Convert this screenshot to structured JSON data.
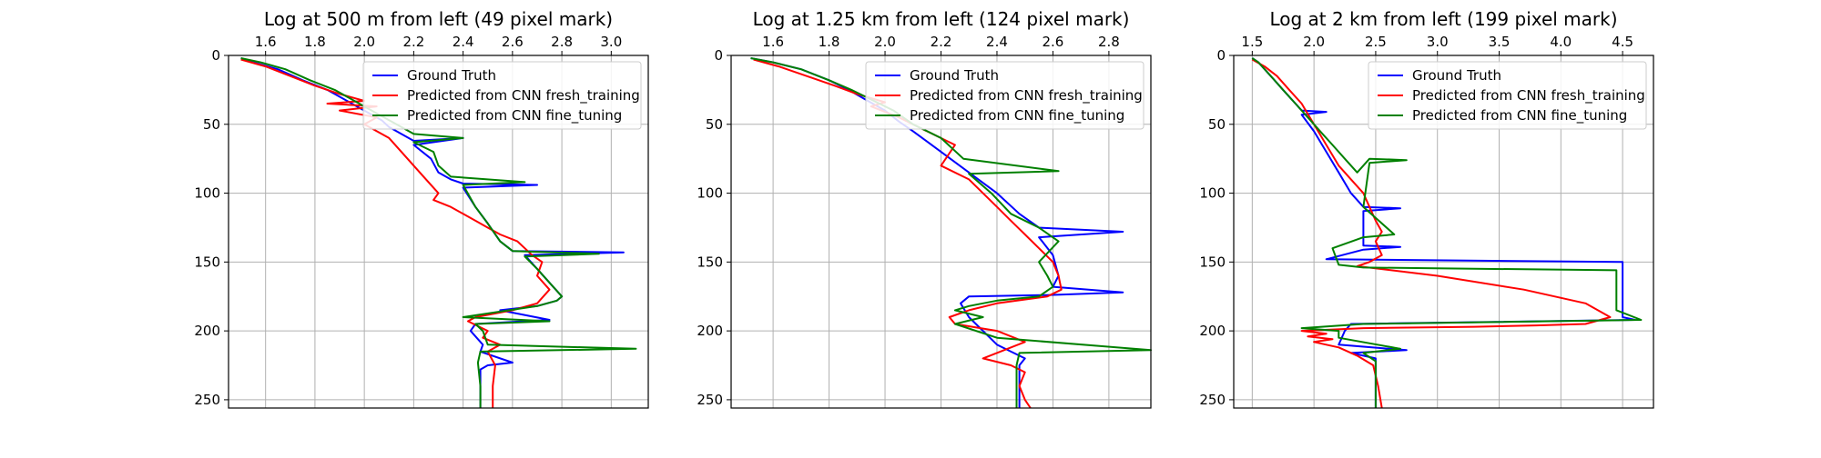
{
  "chart_data": [
    {
      "type": "line",
      "title": "Log at 500 m from left (49 pixel mark)",
      "xlabel": "",
      "ylabel": "",
      "xlim": [
        1.45,
        3.15
      ],
      "ylim": [
        256,
        0
      ],
      "y_inverted": true,
      "xticks": [
        1.6,
        1.8,
        2.0,
        2.2,
        2.4,
        2.6,
        2.8,
        3.0
      ],
      "xtick_labels": [
        "1.6",
        "1.8",
        "2.0",
        "2.2",
        "2.4",
        "2.6",
        "2.8",
        "3.0"
      ],
      "yticks": [
        0,
        50,
        100,
        150,
        200,
        250
      ],
      "ytick_labels": [
        "0",
        "50",
        "100",
        "150",
        "200",
        "250"
      ],
      "x_axis_position": "top",
      "grid": true,
      "legend_position": "top-right",
      "series": [
        {
          "name": "Ground Truth",
          "color": "#0000ff",
          "x": [
            1.5,
            1.55,
            1.65,
            1.75,
            1.85,
            1.92,
            1.97,
            2.02,
            2.07,
            2.1,
            2.15,
            2.2,
            2.4,
            2.2,
            2.27,
            2.3,
            2.35,
            2.4,
            2.7,
            2.4,
            2.45,
            2.5,
            2.55,
            2.6,
            3.05,
            2.65,
            2.7,
            2.75,
            2.8,
            2.78,
            2.7,
            2.55,
            2.75,
            2.45,
            2.43,
            2.48,
            2.47,
            2.6,
            2.5,
            2.47,
            2.47,
            2.47
          ],
          "y": [
            2,
            5,
            10,
            18,
            25,
            32,
            37,
            42,
            47,
            52,
            57,
            62,
            60,
            65,
            75,
            85,
            90,
            93,
            94,
            96,
            110,
            122,
            135,
            142,
            143,
            145,
            155,
            165,
            175,
            178,
            182,
            185,
            192,
            195,
            200,
            210,
            215,
            223,
            225,
            228,
            240,
            256
          ]
        },
        {
          "name": "Predicted from CNN fresh_training",
          "color": "#ff0000",
          "x": [
            1.5,
            1.6,
            1.7,
            1.8,
            1.9,
            2.0,
            1.85,
            2.05,
            1.9,
            2.05,
            2.0,
            2.1,
            2.15,
            2.2,
            2.25,
            2.3,
            2.28,
            2.35,
            2.4,
            2.45,
            2.5,
            2.55,
            2.62,
            2.65,
            2.68,
            2.72,
            2.7,
            2.75,
            2.7,
            2.6,
            2.45,
            2.42,
            2.5,
            2.48,
            2.55,
            2.5,
            2.53,
            2.52,
            2.52
          ],
          "y": [
            3,
            8,
            15,
            22,
            28,
            33,
            35,
            37,
            40,
            45,
            50,
            60,
            70,
            80,
            90,
            100,
            105,
            110,
            115,
            120,
            125,
            130,
            135,
            140,
            145,
            150,
            160,
            170,
            180,
            185,
            190,
            193,
            200,
            205,
            210,
            215,
            225,
            240,
            256
          ]
        },
        {
          "name": "Predicted from CNN fine_tuning",
          "color": "#008000",
          "x": [
            1.5,
            1.58,
            1.68,
            1.78,
            1.88,
            1.95,
            2.0,
            2.05,
            2.1,
            2.15,
            2.2,
            2.4,
            2.2,
            2.28,
            2.3,
            2.35,
            2.65,
            2.4,
            2.45,
            2.5,
            2.55,
            2.6,
            2.95,
            2.65,
            2.7,
            2.75,
            2.8,
            2.78,
            2.7,
            2.55,
            2.4,
            2.75,
            2.45,
            2.48,
            2.5,
            3.1,
            2.47,
            2.46,
            2.47,
            2.47
          ],
          "y": [
            2,
            5,
            10,
            18,
            25,
            32,
            37,
            42,
            47,
            52,
            57,
            60,
            63,
            70,
            80,
            88,
            92,
            94,
            110,
            122,
            135,
            142,
            144,
            146,
            155,
            165,
            175,
            178,
            182,
            186,
            190,
            193,
            195,
            200,
            210,
            213,
            215,
            223,
            240,
            256
          ]
        }
      ]
    },
    {
      "type": "line",
      "title": "Log at 1.25 km from left (124 pixel mark)",
      "xlabel": "",
      "ylabel": "",
      "xlim": [
        1.45,
        2.95
      ],
      "ylim": [
        256,
        0
      ],
      "y_inverted": true,
      "xticks": [
        1.6,
        1.8,
        2.0,
        2.2,
        2.4,
        2.6,
        2.8
      ],
      "xtick_labels": [
        "1.6",
        "1.8",
        "2.0",
        "2.2",
        "2.4",
        "2.6",
        "2.8"
      ],
      "yticks": [
        0,
        50,
        100,
        150,
        200,
        250
      ],
      "ytick_labels": [
        "0",
        "50",
        "100",
        "150",
        "200",
        "250"
      ],
      "x_axis_position": "top",
      "grid": true,
      "legend_position": "top-right",
      "series": [
        {
          "name": "Ground Truth",
          "color": "#0000ff",
          "x": [
            1.52,
            1.6,
            1.7,
            1.8,
            1.87,
            1.93,
            2.0,
            2.05,
            2.1,
            2.2,
            2.3,
            2.4,
            2.48,
            2.55,
            2.85,
            2.55,
            2.6,
            2.62,
            2.6,
            2.85,
            2.58,
            2.3,
            2.27,
            2.3,
            2.35,
            2.4,
            2.45,
            2.5,
            2.48,
            2.48,
            2.48
          ],
          "y": [
            2,
            5,
            10,
            18,
            25,
            32,
            40,
            48,
            55,
            70,
            85,
            100,
            115,
            125,
            128,
            132,
            145,
            160,
            168,
            172,
            174,
            175,
            180,
            190,
            200,
            210,
            215,
            220,
            225,
            240,
            256
          ]
        },
        {
          "name": "Predicted from CNN fresh_training",
          "color": "#ff0000",
          "x": [
            1.53,
            1.62,
            1.72,
            1.82,
            1.9,
            2.0,
            1.95,
            2.05,
            2.15,
            2.25,
            2.2,
            2.3,
            2.35,
            2.4,
            2.45,
            2.5,
            2.55,
            2.6,
            2.62,
            2.63,
            2.58,
            2.4,
            2.3,
            2.23,
            2.25,
            2.4,
            2.5,
            2.35,
            2.45,
            2.5,
            2.48,
            2.5,
            2.52
          ],
          "y": [
            3,
            8,
            15,
            22,
            28,
            34,
            37,
            45,
            55,
            65,
            80,
            90,
            100,
            110,
            120,
            130,
            140,
            150,
            160,
            170,
            175,
            180,
            185,
            190,
            195,
            200,
            208,
            220,
            225,
            230,
            240,
            250,
            256
          ]
        },
        {
          "name": "Predicted from CNN fine_tuning",
          "color": "#008000",
          "x": [
            1.52,
            1.6,
            1.7,
            1.8,
            1.88,
            1.95,
            2.03,
            2.1,
            2.2,
            2.28,
            2.62,
            2.3,
            2.38,
            2.45,
            2.55,
            2.62,
            2.55,
            2.58,
            2.6,
            2.55,
            2.4,
            2.3,
            2.25,
            2.35,
            2.25,
            2.4,
            2.95,
            2.48,
            2.47,
            2.47,
            2.47
          ],
          "y": [
            2,
            5,
            10,
            18,
            25,
            32,
            40,
            50,
            60,
            75,
            84,
            86,
            100,
            115,
            125,
            135,
            150,
            160,
            168,
            175,
            178,
            182,
            185,
            190,
            195,
            205,
            214,
            216,
            225,
            240,
            256
          ]
        }
      ]
    },
    {
      "type": "line",
      "title": "Log at 2 km from left (199 pixel mark)",
      "xlabel": "",
      "ylabel": "",
      "xlim": [
        1.35,
        4.75
      ],
      "ylim": [
        256,
        0
      ],
      "y_inverted": true,
      "xticks": [
        1.5,
        2.0,
        2.5,
        3.0,
        3.5,
        4.0,
        4.5
      ],
      "xtick_labels": [
        "1.5",
        "2.0",
        "2.5",
        "3.0",
        "3.5",
        "4.0",
        "4.5"
      ],
      "yticks": [
        0,
        50,
        100,
        150,
        200,
        250
      ],
      "ytick_labels": [
        "0",
        "50",
        "100",
        "150",
        "200",
        "250"
      ],
      "x_axis_position": "top",
      "grid": true,
      "legend_position": "top-right",
      "series": [
        {
          "name": "Ground Truth",
          "color": "#0000ff",
          "x": [
            1.5,
            1.55,
            1.65,
            1.75,
            1.85,
            1.9,
            2.1,
            1.9,
            2.0,
            2.1,
            2.2,
            2.3,
            2.4,
            2.7,
            2.4,
            2.4,
            2.7,
            2.4,
            2.1,
            4.5,
            4.5,
            4.5,
            4.6,
            2.3,
            2.25,
            2.2,
            2.75,
            2.3,
            2.5,
            2.5,
            2.5
          ],
          "y": [
            2,
            5,
            15,
            25,
            35,
            40,
            41,
            43,
            55,
            70,
            85,
            100,
            110,
            111,
            113,
            138,
            139,
            141,
            148,
            150,
            175,
            190,
            192,
            195,
            200,
            210,
            214,
            216,
            220,
            240,
            256
          ]
        },
        {
          "name": "Predicted from CNN fresh_training",
          "color": "#ff0000",
          "x": [
            1.5,
            1.6,
            1.7,
            1.8,
            1.9,
            2.0,
            2.1,
            2.2,
            2.3,
            2.4,
            2.45,
            2.5,
            2.55,
            2.5,
            2.55,
            2.45,
            2.35,
            3.0,
            3.7,
            4.2,
            4.4,
            4.2,
            3.8,
            3.3,
            2.4,
            1.9,
            2.1,
            1.95,
            2.15,
            2.0,
            2.2,
            2.35,
            2.48,
            2.52,
            2.55
          ],
          "y": [
            3,
            8,
            15,
            25,
            35,
            50,
            65,
            80,
            90,
            100,
            110,
            120,
            128,
            135,
            145,
            150,
            153,
            160,
            170,
            180,
            190,
            195,
            196,
            197,
            198,
            200,
            202,
            204,
            206,
            208,
            212,
            218,
            225,
            240,
            256
          ]
        },
        {
          "name": "Predicted from CNN fine_tuning",
          "color": "#008000",
          "x": [
            1.5,
            1.55,
            1.65,
            1.75,
            1.85,
            1.95,
            2.05,
            2.15,
            2.25,
            2.35,
            2.45,
            2.75,
            2.45,
            2.4,
            2.65,
            2.4,
            2.15,
            2.2,
            2.4,
            4.45,
            4.45,
            4.45,
            4.65,
            2.4,
            1.9,
            2.2,
            2.2,
            2.7,
            2.4,
            2.5,
            2.5,
            2.5
          ],
          "y": [
            2,
            5,
            15,
            25,
            35,
            45,
            55,
            65,
            75,
            85,
            75,
            76,
            78,
            110,
            130,
            132,
            140,
            152,
            154,
            156,
            170,
            185,
            192,
            195,
            198,
            200,
            205,
            213,
            216,
            222,
            240,
            256
          ]
        }
      ]
    }
  ]
}
